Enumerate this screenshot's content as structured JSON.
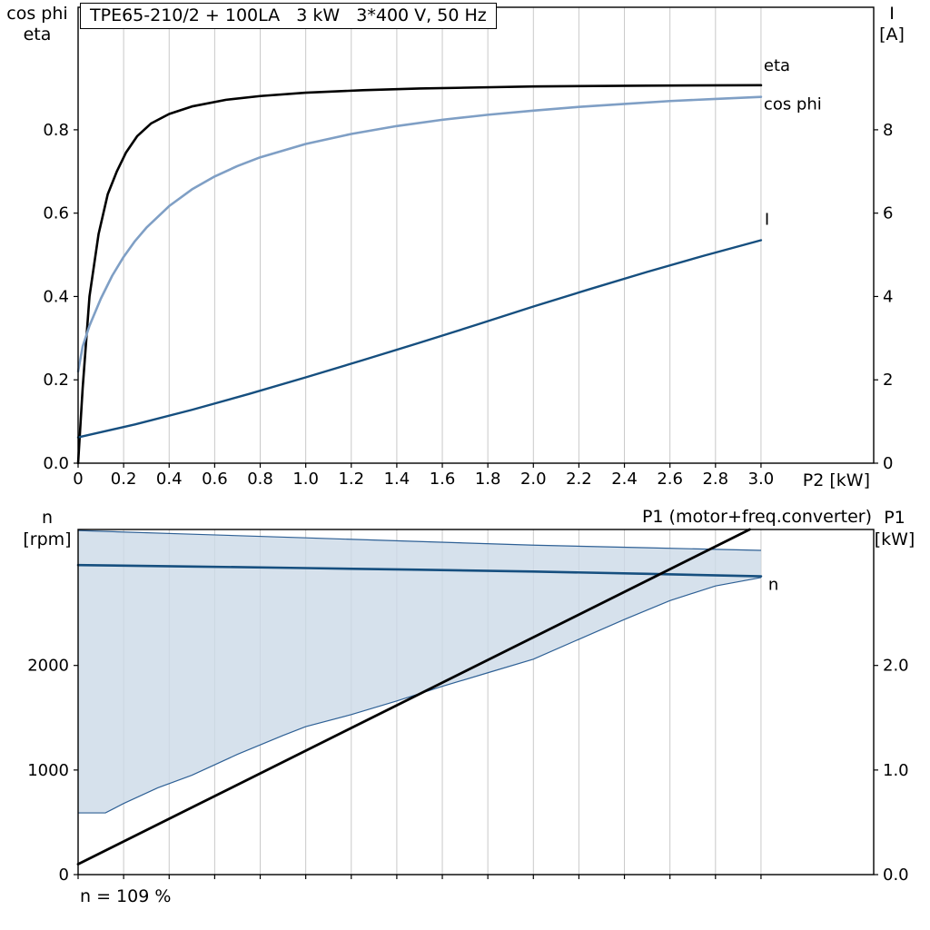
{
  "style": {
    "grid": "#c9c9c9",
    "border": "#000000",
    "dark_blue": "#164f7f",
    "light_blue": "#7f9fc5",
    "band_fill": "#ccd9e7",
    "band_edge": "#2e6095"
  },
  "chart_data": [
    {
      "id": "top",
      "type": "line",
      "title": "TPE65-210/2 + 100LA   3 kW   3*400 V, 50 Hz",
      "x_axis": {
        "label": "P2 [kW]",
        "min": 0,
        "max": 3.495,
        "ticks": [
          0,
          0.2,
          0.4,
          0.6,
          0.8,
          1.0,
          1.2,
          1.4,
          1.6,
          1.8,
          2.0,
          2.2,
          2.4,
          2.6,
          2.8,
          3.0
        ],
        "tick_labels": [
          "0",
          "0.2",
          "0.4",
          "0.6",
          "0.8",
          "1.0",
          "1.2",
          "1.4",
          "1.6",
          "1.8",
          "2.0",
          "2.2",
          "2.4",
          "2.6",
          "2.8",
          "3.0"
        ],
        "grid": true
      },
      "left_axis": {
        "label_lines": [
          "cos phi",
          "eta"
        ],
        "min": 0,
        "max": 1.094,
        "ticks": [
          0,
          0.2,
          0.4,
          0.6,
          0.8
        ],
        "tick_labels": [
          "0.0",
          "0.2",
          "0.4",
          "0.6",
          "0.8"
        ]
      },
      "right_axis": {
        "label_lines": [
          "I",
          "[A]"
        ],
        "min": 0,
        "max": 10.94,
        "ticks": [
          0,
          2,
          4,
          6,
          8
        ],
        "tick_labels": [
          "0",
          "2",
          "4",
          "6",
          "8"
        ]
      },
      "series": [
        {
          "name": "eta",
          "label": "eta",
          "axis": "left",
          "color": "#000000",
          "width": 2.6,
          "x": [
            0,
            0.02,
            0.05,
            0.09,
            0.13,
            0.17,
            0.21,
            0.26,
            0.32,
            0.4,
            0.5,
            0.65,
            0.8,
            1.0,
            1.25,
            1.5,
            2.0,
            2.5,
            3.0
          ],
          "y": [
            0,
            0.18,
            0.4,
            0.55,
            0.645,
            0.7,
            0.745,
            0.785,
            0.815,
            0.838,
            0.856,
            0.872,
            0.881,
            0.889,
            0.895,
            0.899,
            0.904,
            0.906,
            0.907
          ]
        },
        {
          "name": "cos phi",
          "label": "cos phi",
          "axis": "left",
          "color": "#7f9fc5",
          "width": 2.6,
          "x": [
            0,
            0.02,
            0.05,
            0.1,
            0.15,
            0.2,
            0.25,
            0.3,
            0.4,
            0.5,
            0.6,
            0.7,
            0.8,
            1.0,
            1.2,
            1.4,
            1.6,
            1.8,
            2.0,
            2.2,
            2.4,
            2.6,
            2.8,
            3.0
          ],
          "y": [
            0.22,
            0.28,
            0.33,
            0.395,
            0.45,
            0.495,
            0.533,
            0.565,
            0.617,
            0.657,
            0.688,
            0.713,
            0.734,
            0.766,
            0.79,
            0.809,
            0.824,
            0.836,
            0.846,
            0.855,
            0.862,
            0.869,
            0.874,
            0.879
          ]
        },
        {
          "name": "I",
          "label": "I",
          "axis": "right",
          "color": "#164f7f",
          "width": 2.4,
          "x": [
            0,
            0.25,
            0.5,
            0.75,
            1.0,
            1.25,
            1.5,
            1.75,
            2.0,
            2.25,
            2.5,
            2.75,
            3.0
          ],
          "y": [
            0.62,
            0.93,
            1.28,
            1.66,
            2.06,
            2.47,
            2.89,
            3.32,
            3.76,
            4.18,
            4.59,
            4.98,
            5.35
          ]
        }
      ]
    },
    {
      "id": "bottom",
      "type": "line",
      "title": "",
      "annotation": "n = 109 %",
      "x_axis": {
        "label": "",
        "min": 0,
        "max": 3.495,
        "ticks": [
          0,
          0.2,
          0.4,
          0.6,
          0.8,
          1.0,
          1.2,
          1.4,
          1.6,
          1.8,
          2.0,
          2.2,
          2.4,
          2.6,
          2.8,
          3.0
        ],
        "tick_labels": [],
        "grid": true
      },
      "left_axis": {
        "label_lines": [
          "n",
          "[rpm]"
        ],
        "min": 0,
        "max": 3300,
        "ticks": [
          0,
          1000,
          2000
        ],
        "tick_labels": [
          "0",
          "1000",
          "2000"
        ]
      },
      "right_axis": {
        "label_lines": [
          "P1",
          "[kW]"
        ],
        "min": 0,
        "max": 3.3,
        "ticks": [
          0,
          1,
          2
        ],
        "tick_labels": [
          "0.0",
          "1.0",
          "2.0"
        ]
      },
      "band": {
        "name": "speed-control-range",
        "fill": "#ccd9e7",
        "edge": "#2e6095",
        "upper": {
          "x": [
            0,
            0.5,
            1.0,
            1.5,
            2.0,
            2.5,
            3.0
          ],
          "y": [
            3290,
            3255,
            3220,
            3185,
            3150,
            3125,
            3100
          ]
        },
        "lower": {
          "x": [
            0,
            0.12,
            0.2,
            0.35,
            0.5,
            0.7,
            0.9,
            1.0,
            1.2,
            1.4,
            1.6,
            1.8,
            2.0,
            2.2,
            2.4,
            2.6,
            2.8,
            3.0
          ],
          "y": [
            590,
            590,
            680,
            830,
            950,
            1150,
            1330,
            1415,
            1530,
            1660,
            1800,
            1930,
            2060,
            2250,
            2440,
            2620,
            2760,
            2840
          ]
        }
      },
      "series": [
        {
          "name": "n",
          "label": "n",
          "axis": "left",
          "color": "#164f7f",
          "width": 2.6,
          "x": [
            0,
            0.5,
            1.0,
            1.5,
            2.0,
            2.5,
            3.0
          ],
          "y": [
            2960,
            2946,
            2931,
            2915,
            2898,
            2876,
            2852
          ]
        },
        {
          "name": "P1",
          "label": "P1 (motor+freq.converter)",
          "axis": "right",
          "color": "#000000",
          "width": 2.8,
          "x": [
            0,
            2.95
          ],
          "y": [
            0.1,
            3.3
          ]
        }
      ]
    }
  ]
}
